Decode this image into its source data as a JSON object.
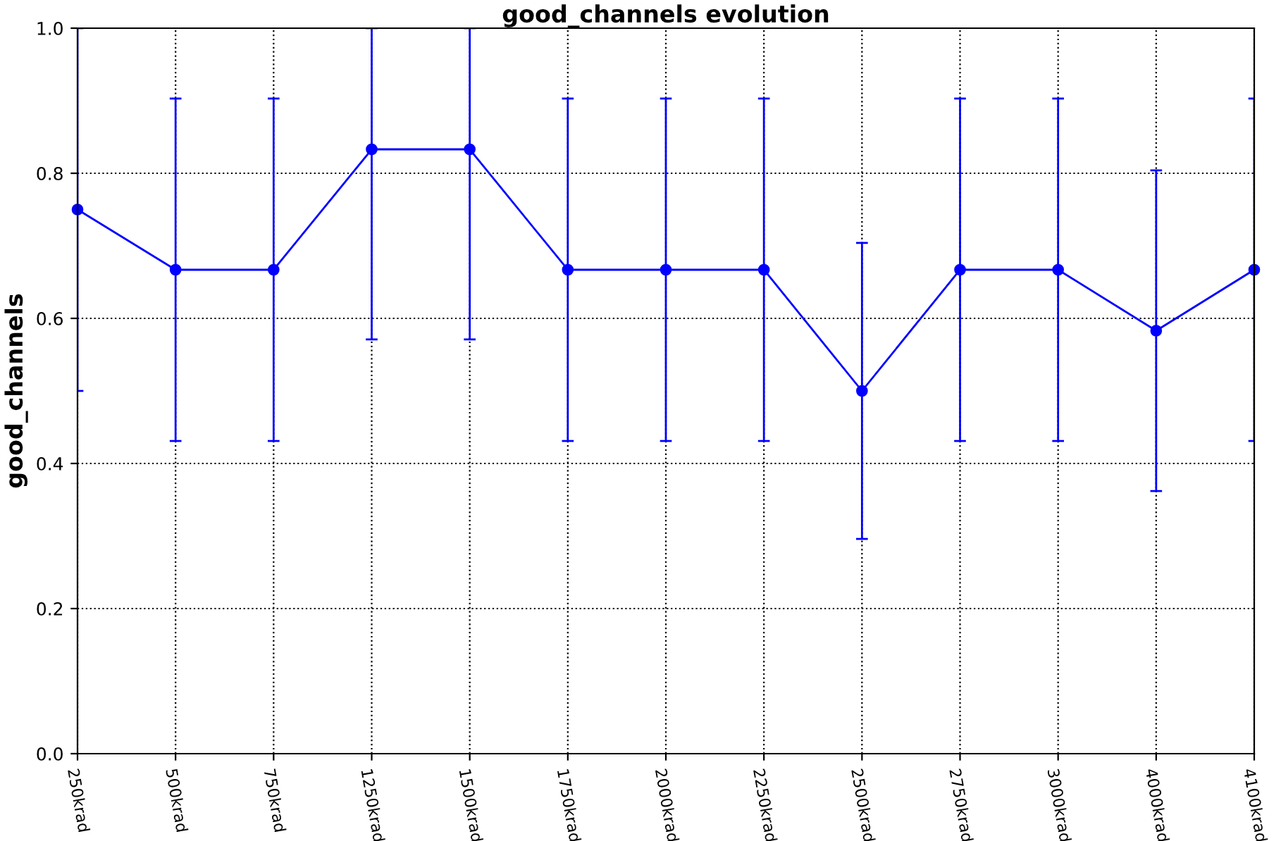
{
  "chart_data": {
    "type": "line",
    "title": "good_channels evolution",
    "ylabel": "good_channels",
    "categories": [
      "250krad",
      "500krad",
      "750krad",
      "1250krad",
      "1500krad",
      "1750krad",
      "2000krad",
      "2250krad",
      "2500krad",
      "2750krad",
      "3000krad",
      "4000krad",
      "4100krad"
    ],
    "series": [
      {
        "color": "#0000ff",
        "values": [
          0.75,
          0.667,
          0.667,
          0.833,
          0.833,
          0.667,
          0.667,
          0.667,
          0.5,
          0.667,
          0.667,
          0.583,
          0.667
        ],
        "errors": [
          0.25,
          0.236,
          0.236,
          [
            0.571,
            1.0
          ],
          [
            0.571,
            1.0
          ],
          0.236,
          0.236,
          0.236,
          0.204,
          0.236,
          0.236,
          0.221,
          0.236
        ]
      }
    ],
    "ylim": [
      0.0,
      1.0
    ],
    "yticks": [
      {
        "value": 0.0,
        "label": "0.0"
      },
      {
        "value": 0.2,
        "label": "0.2"
      },
      {
        "value": 0.4,
        "label": "0.4"
      },
      {
        "value": 0.6,
        "label": "0.6"
      },
      {
        "value": 0.8,
        "label": "0.8"
      },
      {
        "value": 1.0,
        "label": "1.0"
      }
    ],
    "grid": true,
    "marker": "circle",
    "line_style": "solid",
    "legend": false
  }
}
